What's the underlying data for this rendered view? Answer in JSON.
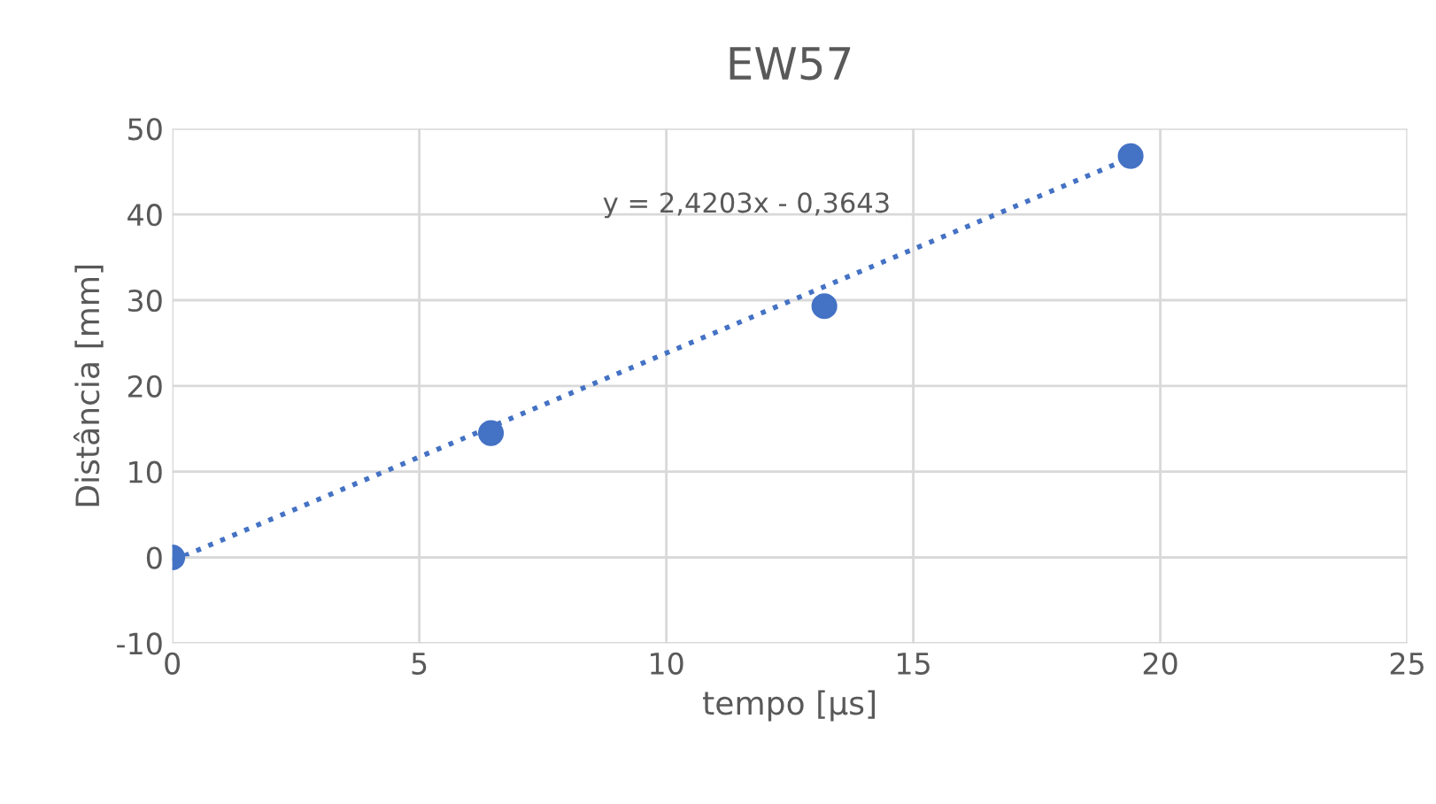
{
  "chart_data": {
    "type": "scatter",
    "title": "EW57",
    "xlabel": "tempo [µs]",
    "ylabel": "Distância [mm]",
    "xlim": [
      0,
      25
    ],
    "xticks": [
      0,
      5,
      10,
      15,
      20,
      25
    ],
    "ylim": [
      -10,
      50
    ],
    "yticks": [
      -10,
      0,
      10,
      20,
      30,
      40,
      50
    ],
    "grid": true,
    "legend": false,
    "series": [
      {
        "color": "#4472c4",
        "marker": "circle",
        "x": [
          0,
          6.45,
          13.2,
          19.4
        ],
        "values": [
          0,
          14.5,
          29.3,
          46.8
        ]
      },
      {
        "type": "line",
        "color": "#4472c4",
        "marker": "none",
        "line_style": "dotted",
        "x": [
          0,
          19.4
        ],
        "values": [
          -0.4,
          46.6
        ]
      }
    ],
    "annotations": [
      "y = 2,4203x - 0,3643"
    ]
  }
}
